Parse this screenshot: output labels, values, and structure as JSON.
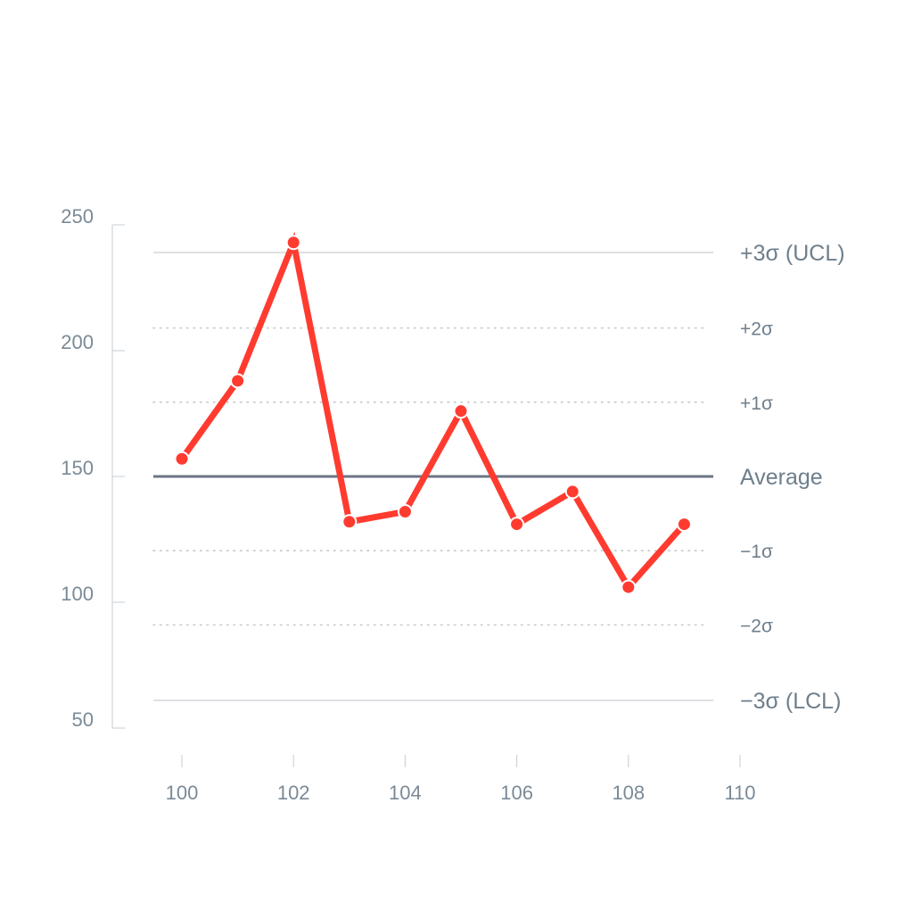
{
  "chart_data": {
    "type": "line",
    "title": "",
    "xlabel": "",
    "ylabel": "",
    "xlim": [
      100,
      110
    ],
    "ylim": [
      50,
      250
    ],
    "x_ticks": [
      "100",
      "102",
      "104",
      "106",
      "108",
      "110"
    ],
    "y_ticks": [
      "250",
      "200",
      "150",
      "100",
      "50"
    ],
    "grid": false,
    "series": [
      {
        "x": [
          100,
          101,
          102,
          103,
          104,
          105,
          106,
          107,
          108,
          109
        ],
        "values": [
          157,
          188,
          243,
          132,
          136,
          176,
          131,
          144,
          106,
          131
        ]
      }
    ],
    "reference_lines": [
      {
        "label": "+3σ (UCL)",
        "value": 239,
        "style": "solid-thin"
      },
      {
        "label": "+2σ",
        "value": 209,
        "style": "dotted"
      },
      {
        "label": "+1σ",
        "value": 179.5,
        "style": "dotted"
      },
      {
        "label": "Average",
        "value": 150,
        "style": "solid-thick"
      },
      {
        "label": "−1σ",
        "value": 120.5,
        "style": "dotted"
      },
      {
        "label": "−2σ",
        "value": 91,
        "style": "dotted"
      },
      {
        "label": "−3σ (LCL)",
        "value": 61,
        "style": "solid-thin"
      }
    ],
    "colors": {
      "series": "#ff3b30",
      "average": "#6c7486",
      "limit": "#c9cdd2",
      "sigma": "#c4c8cc",
      "axis": "#d0d4d8",
      "text": "#7a8a96"
    }
  }
}
